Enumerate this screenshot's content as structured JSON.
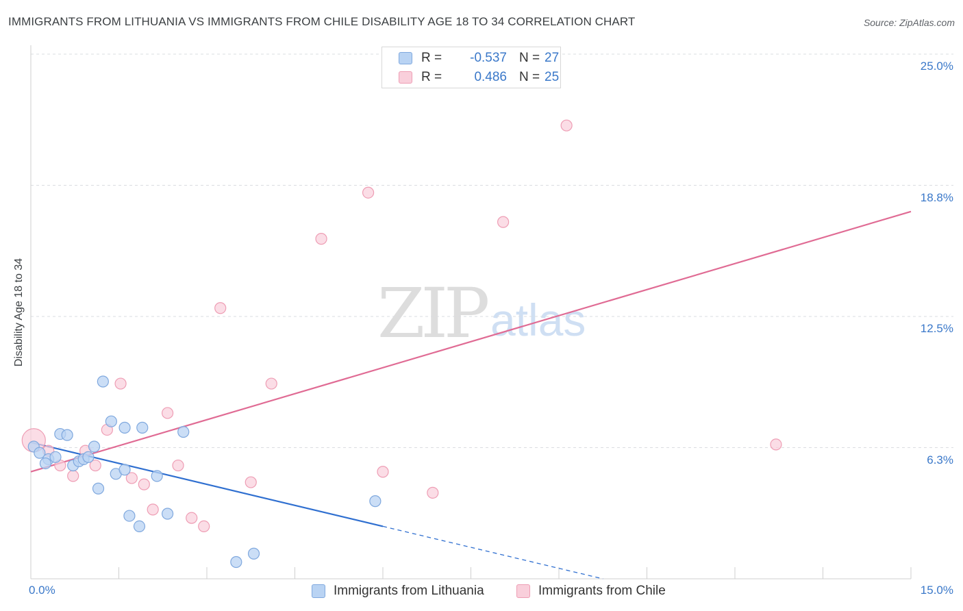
{
  "header": {
    "title": "IMMIGRANTS FROM LITHUANIA VS IMMIGRANTS FROM CHILE DISABILITY AGE 18 TO 34 CORRELATION CHART",
    "source": "Source: ZipAtlas.com"
  },
  "watermark": {
    "zip": "ZIP",
    "atlas": "atlas"
  },
  "legend": {
    "lithuania": {
      "r_label": "R =",
      "r_value": "-0.537",
      "n_label": "N =",
      "n_value": "27",
      "color": "#b9d3f3"
    },
    "chile": {
      "r_label": "R =",
      "r_value": "0.486",
      "n_label": "N =",
      "n_value": "25",
      "color": "#f9cfdb"
    }
  },
  "bottom_legend": {
    "lithuania": "Immigrants from Lithuania",
    "chile": "Immigrants from Chile"
  },
  "axes": {
    "ylabel": "Disability Age 18 to 34",
    "yticks": [
      "25.0%",
      "18.8%",
      "12.5%",
      "6.3%"
    ],
    "xtick_left": "0.0%",
    "xtick_right": "15.0%"
  },
  "colors": {
    "lithuania_point": "#b9d3f3",
    "lithuania_stroke": "#7fa8de",
    "lithuania_line": "#2f6fd0",
    "chile_point": "#f9cfdb",
    "chile_stroke": "#ee9db4",
    "chile_line": "#e06b94",
    "tick_label": "#3a78c9"
  },
  "chart_data": {
    "type": "scatter",
    "title": "IMMIGRANTS FROM LITHUANIA VS IMMIGRANTS FROM CHILE DISABILITY AGE 18 TO 34 CORRELATION CHART",
    "xlabel": "",
    "ylabel": "Disability Age 18 to 34",
    "xlim": [
      0,
      15
    ],
    "ylim": [
      0,
      25
    ],
    "yticks": [
      6.25,
      12.5,
      18.75,
      25.0
    ],
    "grid": true,
    "legend_position": "top-center",
    "series": [
      {
        "name": "Immigrants from Lithuania",
        "r": -0.537,
        "n": 27,
        "points": [
          [
            0.05,
            6.3
          ],
          [
            0.15,
            6.0
          ],
          [
            0.3,
            5.7
          ],
          [
            0.25,
            5.5
          ],
          [
            0.42,
            5.8
          ],
          [
            0.5,
            6.9
          ],
          [
            0.62,
            6.85
          ],
          [
            0.72,
            5.4
          ],
          [
            0.82,
            5.6
          ],
          [
            0.9,
            5.7
          ],
          [
            0.98,
            5.8
          ],
          [
            1.08,
            6.3
          ],
          [
            1.15,
            4.3
          ],
          [
            1.23,
            9.4
          ],
          [
            1.37,
            7.5
          ],
          [
            1.45,
            5.0
          ],
          [
            1.6,
            5.2
          ],
          [
            1.6,
            7.2
          ],
          [
            1.68,
            3.0
          ],
          [
            1.85,
            2.5
          ],
          [
            1.9,
            7.2
          ],
          [
            2.15,
            4.9
          ],
          [
            2.33,
            3.1
          ],
          [
            2.6,
            7.0
          ],
          [
            3.5,
            0.8
          ],
          [
            3.8,
            1.2
          ],
          [
            5.87,
            3.7
          ]
        ],
        "trend": {
          "x0": 0,
          "y0": 6.5,
          "x1": 15,
          "y1": -3.5,
          "solid_until_x": 6.0
        }
      },
      {
        "name": "Immigrants from Chile",
        "r": 0.486,
        "n": 25,
        "points": [
          [
            0.05,
            6.6
          ],
          [
            0.3,
            6.1
          ],
          [
            0.5,
            5.4
          ],
          [
            0.72,
            4.9
          ],
          [
            0.93,
            6.1
          ],
          [
            1.1,
            5.4
          ],
          [
            1.3,
            7.1
          ],
          [
            1.53,
            9.3
          ],
          [
            1.72,
            4.8
          ],
          [
            1.93,
            4.5
          ],
          [
            2.08,
            3.3
          ],
          [
            2.33,
            7.9
          ],
          [
            2.51,
            5.4
          ],
          [
            2.74,
            2.9
          ],
          [
            2.95,
            2.5
          ],
          [
            3.23,
            12.9
          ],
          [
            3.75,
            4.6
          ],
          [
            4.1,
            9.3
          ],
          [
            4.95,
            16.2
          ],
          [
            5.75,
            18.4
          ],
          [
            6.0,
            5.1
          ],
          [
            6.85,
            4.1
          ],
          [
            8.05,
            17.0
          ],
          [
            9.13,
            21.6
          ],
          [
            12.7,
            6.4
          ]
        ],
        "trend": {
          "x0": 0,
          "y0": 5.1,
          "x1": 15,
          "y1": 17.5
        }
      }
    ]
  }
}
